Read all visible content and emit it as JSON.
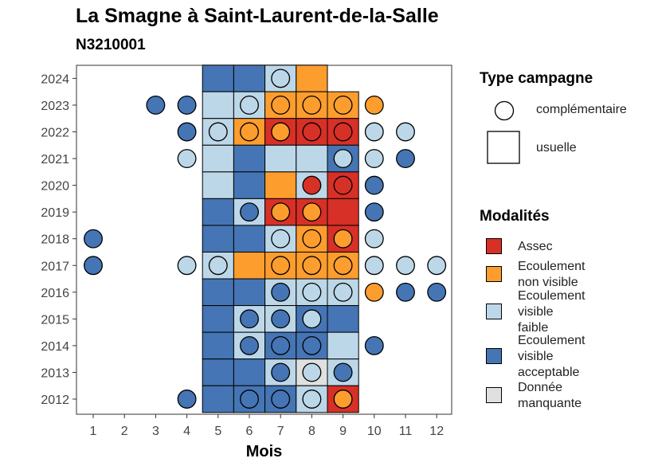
{
  "chart_data": {
    "type": "heatmap",
    "title": "La Smagne à Saint-Laurent-de-la-Salle",
    "subtitle": "N3210001",
    "xlabel": "Mois",
    "ylabel": "",
    "x_ticks": [
      "1",
      "2",
      "3",
      "4",
      "5",
      "6",
      "7",
      "8",
      "9",
      "10",
      "11",
      "12"
    ],
    "y_ticks": [
      "2012",
      "2013",
      "2014",
      "2015",
      "2016",
      "2017",
      "2018",
      "2019",
      "2020",
      "2021",
      "2022",
      "2023",
      "2024"
    ],
    "xlim": [
      0.5,
      12.5
    ],
    "ylim": [
      2011.5,
      2024.5
    ],
    "grid": false,
    "legend_position": "right",
    "colors": {
      "Assec": "#d73027",
      "Ecoulement non visible": "#fc9d2e",
      "Ecoulement visible faible": "#bcd7e8",
      "Ecoulement visible acceptable": "#4575b4",
      "Donnée manquante": "#e0e0e0"
    },
    "legend_type": {
      "title": "Type campagne",
      "items": [
        {
          "label": "complémentaire",
          "shape": "circle"
        },
        {
          "label": "usuelle",
          "shape": "square"
        }
      ]
    },
    "legend_modalites": {
      "title": "Modalités",
      "items": [
        {
          "label": "Assec",
          "lines": [
            "Assec"
          ],
          "key": "Assec"
        },
        {
          "label": "Ecoulement non visible",
          "lines": [
            "Ecoulement",
            "non visible"
          ],
          "key": "Ecoulement non visible"
        },
        {
          "label": "Ecoulement visible faible",
          "lines": [
            "Ecoulement",
            "visible",
            "faible"
          ],
          "key": "Ecoulement visible faible"
        },
        {
          "label": "Ecoulement visible acceptable",
          "lines": [
            "Ecoulement",
            "visible",
            "acceptable"
          ],
          "key": "Ecoulement visible acceptable"
        },
        {
          "label": "Donnée manquante",
          "lines": [
            "Donnée",
            "manquante"
          ],
          "key": "Donnée manquante"
        }
      ]
    },
    "usuelle": [
      {
        "year": 2024,
        "month": 5,
        "value": "Ecoulement visible acceptable"
      },
      {
        "year": 2024,
        "month": 6,
        "value": "Ecoulement visible acceptable"
      },
      {
        "year": 2024,
        "month": 7,
        "value": "Ecoulement visible faible"
      },
      {
        "year": 2024,
        "month": 8,
        "value": "Ecoulement non visible"
      },
      {
        "year": 2023,
        "month": 5,
        "value": "Ecoulement visible faible"
      },
      {
        "year": 2023,
        "month": 6,
        "value": "Ecoulement visible faible"
      },
      {
        "year": 2023,
        "month": 7,
        "value": "Ecoulement non visible"
      },
      {
        "year": 2023,
        "month": 8,
        "value": "Ecoulement non visible"
      },
      {
        "year": 2023,
        "month": 9,
        "value": "Ecoulement non visible"
      },
      {
        "year": 2022,
        "month": 5,
        "value": "Ecoulement visible faible"
      },
      {
        "year": 2022,
        "month": 6,
        "value": "Ecoulement non visible"
      },
      {
        "year": 2022,
        "month": 7,
        "value": "Assec"
      },
      {
        "year": 2022,
        "month": 8,
        "value": "Assec"
      },
      {
        "year": 2022,
        "month": 9,
        "value": "Assec"
      },
      {
        "year": 2021,
        "month": 5,
        "value": "Ecoulement visible faible"
      },
      {
        "year": 2021,
        "month": 6,
        "value": "Ecoulement visible acceptable"
      },
      {
        "year": 2021,
        "month": 7,
        "value": "Ecoulement visible faible"
      },
      {
        "year": 2021,
        "month": 8,
        "value": "Ecoulement visible faible"
      },
      {
        "year": 2021,
        "month": 9,
        "value": "Ecoulement visible acceptable"
      },
      {
        "year": 2020,
        "month": 5,
        "value": "Ecoulement visible faible"
      },
      {
        "year": 2020,
        "month": 6,
        "value": "Ecoulement visible acceptable"
      },
      {
        "year": 2020,
        "month": 7,
        "value": "Ecoulement non visible"
      },
      {
        "year": 2020,
        "month": 8,
        "value": "Ecoulement visible faible"
      },
      {
        "year": 2020,
        "month": 9,
        "value": "Assec"
      },
      {
        "year": 2019,
        "month": 5,
        "value": "Ecoulement visible acceptable"
      },
      {
        "year": 2019,
        "month": 6,
        "value": "Ecoulement visible faible"
      },
      {
        "year": 2019,
        "month": 7,
        "value": "Assec"
      },
      {
        "year": 2019,
        "month": 8,
        "value": "Assec"
      },
      {
        "year": 2019,
        "month": 9,
        "value": "Assec"
      },
      {
        "year": 2018,
        "month": 5,
        "value": "Ecoulement visible acceptable"
      },
      {
        "year": 2018,
        "month": 6,
        "value": "Ecoulement visible acceptable"
      },
      {
        "year": 2018,
        "month": 7,
        "value": "Ecoulement visible faible"
      },
      {
        "year": 2018,
        "month": 8,
        "value": "Ecoulement non visible"
      },
      {
        "year": 2018,
        "month": 9,
        "value": "Assec"
      },
      {
        "year": 2017,
        "month": 5,
        "value": "Ecoulement visible faible"
      },
      {
        "year": 2017,
        "month": 6,
        "value": "Ecoulement non visible"
      },
      {
        "year": 2017,
        "month": 7,
        "value": "Ecoulement non visible"
      },
      {
        "year": 2017,
        "month": 8,
        "value": "Ecoulement non visible"
      },
      {
        "year": 2017,
        "month": 9,
        "value": "Ecoulement non visible"
      },
      {
        "year": 2016,
        "month": 5,
        "value": "Ecoulement visible acceptable"
      },
      {
        "year": 2016,
        "month": 6,
        "value": "Ecoulement visible acceptable"
      },
      {
        "year": 2016,
        "month": 7,
        "value": "Ecoulement visible faible"
      },
      {
        "year": 2016,
        "month": 8,
        "value": "Ecoulement visible faible"
      },
      {
        "year": 2016,
        "month": 9,
        "value": "Ecoulement visible faible"
      },
      {
        "year": 2015,
        "month": 5,
        "value": "Ecoulement visible acceptable"
      },
      {
        "year": 2015,
        "month": 6,
        "value": "Ecoulement visible faible"
      },
      {
        "year": 2015,
        "month": 7,
        "value": "Ecoulement visible faible"
      },
      {
        "year": 2015,
        "month": 8,
        "value": "Ecoulement visible acceptable"
      },
      {
        "year": 2015,
        "month": 9,
        "value": "Ecoulement visible acceptable"
      },
      {
        "year": 2014,
        "month": 5,
        "value": "Ecoulement visible acceptable"
      },
      {
        "year": 2014,
        "month": 6,
        "value": "Ecoulement visible faible"
      },
      {
        "year": 2014,
        "month": 7,
        "value": "Ecoulement visible acceptable"
      },
      {
        "year": 2014,
        "month": 8,
        "value": "Ecoulement visible acceptable"
      },
      {
        "year": 2014,
        "month": 9,
        "value": "Ecoulement visible faible"
      },
      {
        "year": 2013,
        "month": 5,
        "value": "Ecoulement visible acceptable"
      },
      {
        "year": 2013,
        "month": 6,
        "value": "Ecoulement visible acceptable"
      },
      {
        "year": 2013,
        "month": 7,
        "value": "Ecoulement visible faible"
      },
      {
        "year": 2013,
        "month": 8,
        "value": "Donnée manquante"
      },
      {
        "year": 2013,
        "month": 9,
        "value": "Ecoulement visible faible"
      },
      {
        "year": 2012,
        "month": 5,
        "value": "Ecoulement visible acceptable"
      },
      {
        "year": 2012,
        "month": 6,
        "value": "Ecoulement visible acceptable"
      },
      {
        "year": 2012,
        "month": 7,
        "value": "Ecoulement visible acceptable"
      },
      {
        "year": 2012,
        "month": 8,
        "value": "Ecoulement visible faible"
      },
      {
        "year": 2012,
        "month": 9,
        "value": "Assec"
      }
    ],
    "complementaire": [
      {
        "year": 2024,
        "month": 7,
        "value": "Ecoulement visible faible"
      },
      {
        "year": 2023,
        "month": 3,
        "value": "Ecoulement visible acceptable"
      },
      {
        "year": 2023,
        "month": 4,
        "value": "Ecoulement visible acceptable"
      },
      {
        "year": 2023,
        "month": 6,
        "value": "Ecoulement visible faible"
      },
      {
        "year": 2023,
        "month": 7,
        "value": "Ecoulement non visible"
      },
      {
        "year": 2023,
        "month": 8,
        "value": "Ecoulement non visible"
      },
      {
        "year": 2023,
        "month": 9,
        "value": "Ecoulement non visible"
      },
      {
        "year": 2023,
        "month": 10,
        "value": "Ecoulement non visible"
      },
      {
        "year": 2022,
        "month": 4,
        "value": "Ecoulement visible acceptable"
      },
      {
        "year": 2022,
        "month": 5,
        "value": "Ecoulement visible faible"
      },
      {
        "year": 2022,
        "month": 6,
        "value": "Ecoulement non visible"
      },
      {
        "year": 2022,
        "month": 7,
        "value": "Ecoulement non visible"
      },
      {
        "year": 2022,
        "month": 8,
        "value": "Assec"
      },
      {
        "year": 2022,
        "month": 9,
        "value": "Assec"
      },
      {
        "year": 2022,
        "month": 10,
        "value": "Ecoulement visible faible"
      },
      {
        "year": 2022,
        "month": 11,
        "value": "Ecoulement visible faible"
      },
      {
        "year": 2021,
        "month": 4,
        "value": "Ecoulement visible faible"
      },
      {
        "year": 2021,
        "month": 9,
        "value": "Ecoulement visible faible"
      },
      {
        "year": 2021,
        "month": 10,
        "value": "Ecoulement visible faible"
      },
      {
        "year": 2021,
        "month": 11,
        "value": "Ecoulement visible acceptable"
      },
      {
        "year": 2020,
        "month": 8,
        "value": "Assec"
      },
      {
        "year": 2020,
        "month": 9,
        "value": "Assec"
      },
      {
        "year": 2020,
        "month": 10,
        "value": "Ecoulement visible acceptable"
      },
      {
        "year": 2019,
        "month": 6,
        "value": "Ecoulement visible acceptable"
      },
      {
        "year": 2019,
        "month": 7,
        "value": "Ecoulement non visible"
      },
      {
        "year": 2019,
        "month": 8,
        "value": "Ecoulement non visible"
      },
      {
        "year": 2019,
        "month": 10,
        "value": "Ecoulement visible acceptable"
      },
      {
        "year": 2018,
        "month": 1,
        "value": "Ecoulement visible acceptable"
      },
      {
        "year": 2018,
        "month": 7,
        "value": "Ecoulement visible faible"
      },
      {
        "year": 2018,
        "month": 8,
        "value": "Ecoulement non visible"
      },
      {
        "year": 2018,
        "month": 9,
        "value": "Ecoulement non visible"
      },
      {
        "year": 2018,
        "month": 10,
        "value": "Ecoulement visible faible"
      },
      {
        "year": 2017,
        "month": 1,
        "value": "Ecoulement visible acceptable"
      },
      {
        "year": 2017,
        "month": 4,
        "value": "Ecoulement visible faible"
      },
      {
        "year": 2017,
        "month": 5,
        "value": "Ecoulement visible faible"
      },
      {
        "year": 2017,
        "month": 7,
        "value": "Ecoulement non visible"
      },
      {
        "year": 2017,
        "month": 8,
        "value": "Ecoulement non visible"
      },
      {
        "year": 2017,
        "month": 9,
        "value": "Ecoulement non visible"
      },
      {
        "year": 2017,
        "month": 10,
        "value": "Ecoulement visible faible"
      },
      {
        "year": 2017,
        "month": 11,
        "value": "Ecoulement visible faible"
      },
      {
        "year": 2017,
        "month": 12,
        "value": "Ecoulement visible faible"
      },
      {
        "year": 2016,
        "month": 7,
        "value": "Ecoulement visible acceptable"
      },
      {
        "year": 2016,
        "month": 8,
        "value": "Ecoulement visible faible"
      },
      {
        "year": 2016,
        "month": 9,
        "value": "Ecoulement visible faible"
      },
      {
        "year": 2016,
        "month": 10,
        "value": "Ecoulement non visible"
      },
      {
        "year": 2016,
        "month": 11,
        "value": "Ecoulement visible acceptable"
      },
      {
        "year": 2016,
        "month": 12,
        "value": "Ecoulement visible acceptable"
      },
      {
        "year": 2015,
        "month": 6,
        "value": "Ecoulement visible acceptable"
      },
      {
        "year": 2015,
        "month": 7,
        "value": "Ecoulement visible acceptable"
      },
      {
        "year": 2015,
        "month": 8,
        "value": "Ecoulement visible faible"
      },
      {
        "year": 2014,
        "month": 6,
        "value": "Ecoulement visible acceptable"
      },
      {
        "year": 2014,
        "month": 7,
        "value": "Ecoulement visible acceptable"
      },
      {
        "year": 2014,
        "month": 8,
        "value": "Ecoulement visible acceptable"
      },
      {
        "year": 2014,
        "month": 10,
        "value": "Ecoulement visible acceptable"
      },
      {
        "year": 2013,
        "month": 7,
        "value": "Ecoulement visible acceptable"
      },
      {
        "year": 2013,
        "month": 8,
        "value": "Ecoulement visible faible"
      },
      {
        "year": 2013,
        "month": 9,
        "value": "Ecoulement visible acceptable"
      },
      {
        "year": 2012,
        "month": 4,
        "value": "Ecoulement visible acceptable"
      },
      {
        "year": 2012,
        "month": 6,
        "value": "Ecoulement visible acceptable"
      },
      {
        "year": 2012,
        "month": 7,
        "value": "Ecoulement visible acceptable"
      },
      {
        "year": 2012,
        "month": 8,
        "value": "Ecoulement visible faible"
      },
      {
        "year": 2012,
        "month": 9,
        "value": "Ecoulement non visible"
      }
    ]
  }
}
